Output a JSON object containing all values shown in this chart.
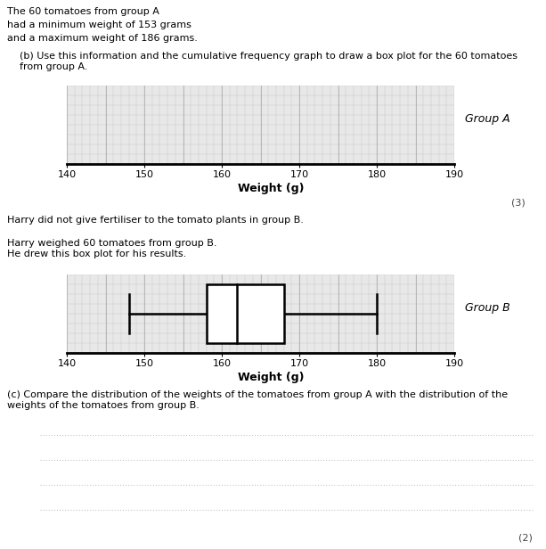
{
  "text_top": [
    "The 60 tomatoes from group A",
    "had a minimum weight of 153 grams",
    "and a maximum weight of 186 grams."
  ],
  "text_b_instruction": "(b) Use this information and the cumulative frequency graph to draw a box plot for the 60 tomatoes\nfrom group A.",
  "text_harry1": "Harry did not give fertiliser to the tomato plants in group B.",
  "text_harry2": "Harry weighed 60 tomatoes from group B.\nHe drew this box plot for his results.",
  "text_c_instruction": "(c) Compare the distribution of the weights of the tomatoes from group A with the distribution of the\nweights of the tomatoes from group B.",
  "score_b": "(3)",
  "score_c": "(2)",
  "xlabel": "Weight (g)",
  "label_a": "Group A",
  "label_b": "Group B",
  "x_min": 140,
  "x_max": 190,
  "x_ticks": [
    140,
    150,
    160,
    170,
    180,
    190
  ],
  "groupB_min": 148,
  "groupB_q1": 158,
  "groupB_median": 162,
  "groupB_q3": 168,
  "groupB_max": 180,
  "box_color": "#000000",
  "grid_color_fine": "#c8c8c8",
  "grid_color_coarse": "#b0b0b0",
  "bg_color": "#e8e8e8",
  "n_dotted_lines": 4,
  "fig_width": 6.13,
  "fig_height": 6.16,
  "dpi": 100
}
